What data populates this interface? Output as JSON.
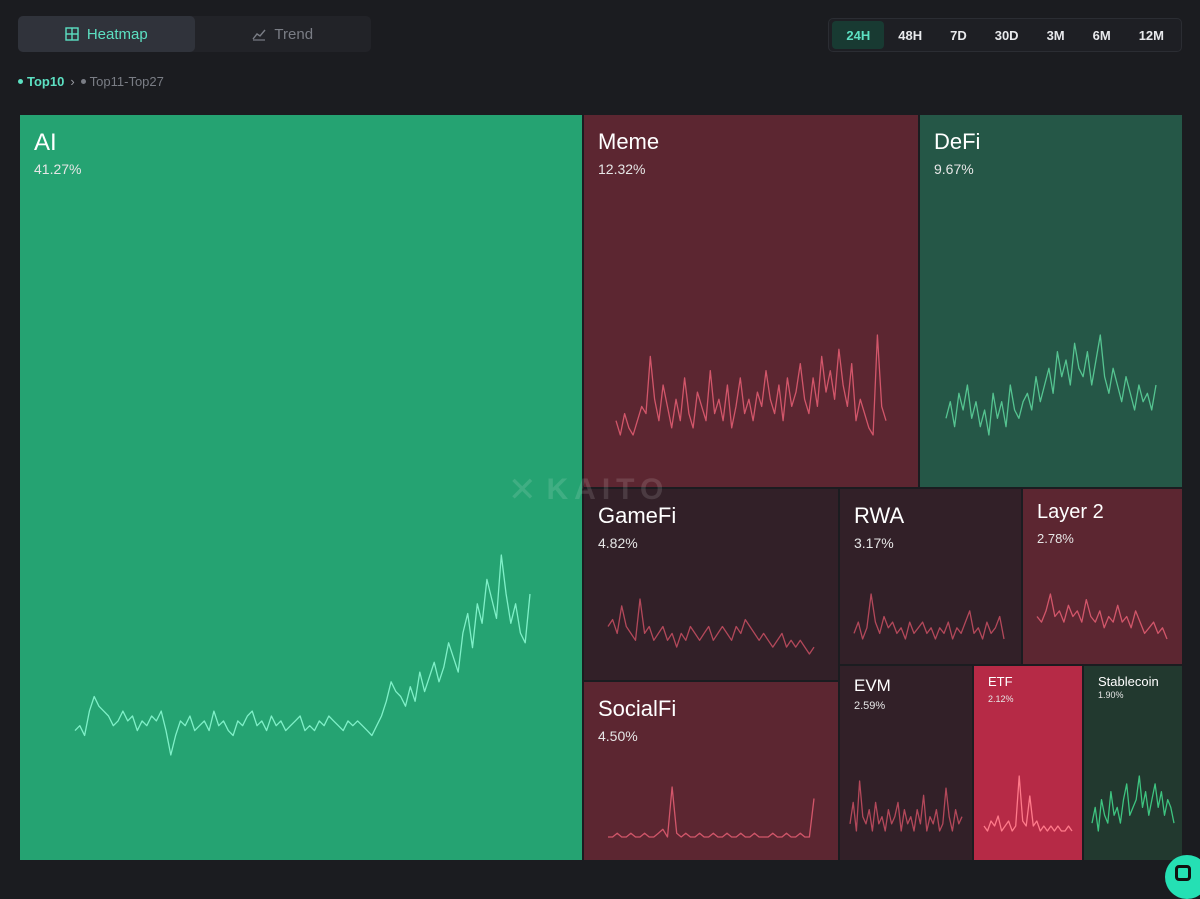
{
  "view_toggle": {
    "heatmap_label": "Heatmap",
    "trend_label": "Trend",
    "active": "Heatmap"
  },
  "time_ranges": {
    "options": [
      "24H",
      "48H",
      "7D",
      "30D",
      "3M",
      "6M",
      "12M"
    ],
    "selected": "24H"
  },
  "breadcrumb": {
    "active_label": "Top10",
    "inactive_label": "Top11-Top27"
  },
  "watermark": {
    "mark": "✕",
    "text": "KAITO"
  },
  "colors": {
    "accent": "#5ce0c2",
    "gain_strong": "#25a372",
    "gain_muted": "#255747",
    "loss_muted": "#5c2631",
    "loss_strong": "#b62a46"
  },
  "chart_data": {
    "type": "treemap",
    "title": "",
    "unit": "%",
    "segments": [
      {
        "name": "AI",
        "value": 41.27,
        "label": "41.27%",
        "trend": "up",
        "tone": "green-strong",
        "sparkline": [
          2,
          3,
          1,
          6,
          9,
          7,
          6,
          5,
          3,
          4,
          6,
          4,
          5,
          2,
          4,
          3,
          5,
          4,
          6,
          2,
          -3,
          1,
          4,
          3,
          5,
          2,
          3,
          4,
          2,
          6,
          3,
          4,
          2,
          1,
          4,
          3,
          5,
          6,
          3,
          4,
          2,
          5,
          3,
          4,
          2,
          3,
          4,
          5,
          2,
          3,
          2,
          4,
          3,
          5,
          4,
          3,
          2,
          4,
          3,
          4,
          3,
          2,
          1,
          3,
          5,
          8,
          12,
          10,
          9,
          7,
          11,
          8,
          14,
          10,
          13,
          16,
          12,
          15,
          20,
          17,
          14,
          22,
          26,
          19,
          28,
          24,
          33,
          29,
          25,
          38,
          30,
          24,
          28,
          22,
          20,
          30
        ]
      },
      {
        "name": "Meme",
        "value": 12.32,
        "label": "12.32%",
        "trend": "down",
        "tone": "red-muted",
        "sparkline": [
          3,
          1,
          4,
          2,
          1,
          3,
          5,
          4,
          12,
          6,
          3,
          8,
          5,
          2,
          6,
          3,
          9,
          4,
          2,
          7,
          5,
          3,
          10,
          4,
          6,
          3,
          8,
          2,
          5,
          9,
          4,
          6,
          3,
          7,
          5,
          10,
          6,
          4,
          8,
          3,
          9,
          5,
          7,
          11,
          6,
          4,
          9,
          5,
          12,
          7,
          10,
          6,
          13,
          8,
          5,
          11,
          3,
          6,
          4,
          2,
          1,
          15,
          5,
          3
        ]
      },
      {
        "name": "DeFi",
        "value": 9.67,
        "label": "9.67%",
        "trend": "up",
        "tone": "green-muted",
        "sparkline": [
          4,
          6,
          3,
          7,
          5,
          8,
          4,
          6,
          3,
          5,
          2,
          7,
          4,
          6,
          3,
          8,
          5,
          4,
          6,
          7,
          5,
          9,
          6,
          8,
          10,
          7,
          12,
          9,
          11,
          8,
          13,
          10,
          9,
          12,
          8,
          11,
          14,
          9,
          7,
          10,
          8,
          6,
          9,
          7,
          5,
          8,
          6,
          7,
          5,
          8
        ]
      },
      {
        "name": "GameFi",
        "value": 4.82,
        "label": "4.82%",
        "trend": "down",
        "tone": "red-dark",
        "sparkline": [
          5,
          6,
          4,
          8,
          5,
          4,
          3,
          9,
          4,
          5,
          3,
          4,
          5,
          3,
          4,
          2,
          4,
          3,
          5,
          4,
          3,
          4,
          5,
          3,
          4,
          5,
          4,
          3,
          5,
          4,
          6,
          5,
          4,
          3,
          4,
          3,
          2,
          3,
          4,
          2,
          3,
          2,
          3,
          2,
          1,
          2
        ]
      },
      {
        "name": "RWA",
        "value": 3.17,
        "label": "3.17%",
        "trend": "down",
        "tone": "red-dark",
        "sparkline": [
          4,
          6,
          3,
          5,
          11,
          6,
          4,
          7,
          5,
          6,
          4,
          5,
          3,
          6,
          4,
          5,
          6,
          4,
          5,
          3,
          5,
          4,
          6,
          3,
          5,
          4,
          6,
          8,
          4,
          5,
          3,
          6,
          4,
          5,
          7,
          3
        ]
      },
      {
        "name": "Layer 2",
        "value": 2.78,
        "label": "2.78%",
        "trend": "down",
        "tone": "red-muted",
        "sparkline": [
          5,
          4,
          6,
          9,
          5,
          6,
          4,
          7,
          5,
          6,
          4,
          8,
          5,
          4,
          6,
          3,
          5,
          4,
          7,
          4,
          5,
          3,
          6,
          4,
          2,
          3,
          4,
          2,
          3,
          1
        ]
      },
      {
        "name": "SocialFi",
        "value": 4.5,
        "label": "4.50%",
        "trend": "down",
        "tone": "red-muted",
        "sparkline": [
          1,
          1,
          2,
          1,
          1,
          2,
          1,
          1,
          2,
          1,
          1,
          2,
          3,
          1,
          14,
          2,
          1,
          2,
          1,
          1,
          2,
          1,
          1,
          2,
          1,
          1,
          2,
          1,
          1,
          2,
          1,
          1,
          2,
          1,
          1,
          1,
          2,
          1,
          1,
          2,
          1,
          1,
          2,
          1,
          1,
          11
        ]
      },
      {
        "name": "EVM",
        "value": 2.59,
        "label": "2.59%",
        "trend": "down",
        "tone": "red-dark",
        "sparkline": [
          4,
          7,
          3,
          10,
          5,
          4,
          6,
          3,
          7,
          4,
          5,
          3,
          6,
          4,
          5,
          7,
          3,
          6,
          4,
          5,
          3,
          6,
          4,
          8,
          3,
          5,
          4,
          6,
          3,
          4,
          9,
          5,
          3,
          6,
          4,
          5
        ]
      },
      {
        "name": "ETF",
        "value": 2.12,
        "label": "2.12%",
        "trend": "down",
        "tone": "red-strong",
        "sparkline": [
          2,
          1,
          3,
          2,
          4,
          1,
          2,
          3,
          1,
          2,
          12,
          3,
          2,
          8,
          2,
          3,
          1,
          2,
          1,
          2,
          1,
          2,
          1,
          1,
          2,
          1
        ]
      },
      {
        "name": "Stablecoin",
        "value": 1.9,
        "label": "1.90%",
        "trend": "up",
        "tone": "green-dark",
        "sparkline": [
          3,
          5,
          2,
          6,
          4,
          3,
          7,
          4,
          5,
          3,
          6,
          8,
          4,
          5,
          6,
          9,
          5,
          7,
          4,
          6,
          8,
          5,
          7,
          4,
          6,
          5,
          3
        ]
      }
    ]
  }
}
